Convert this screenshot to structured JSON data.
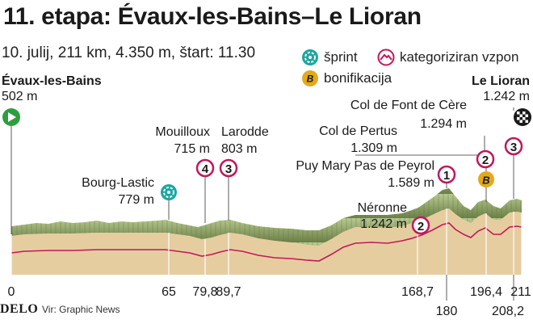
{
  "title": "11. etapa: Évaux-les-Bains–Le Lioran",
  "subtitle": "10. julij, 211 km, 4.350 m, štart: 11.30",
  "legend": {
    "sprint": "šprint",
    "climb": "kategoriziran vzpon",
    "bonus": "bonifikacija",
    "bonus_glyph": "B"
  },
  "start": {
    "name": "Évaux-les-Bains",
    "elevation": "502 m"
  },
  "finish": {
    "name": "Le Lioran",
    "elevation": "1.242 m"
  },
  "points": [
    {
      "id": "bourg-lastic",
      "name": "Bourg-Lastic",
      "elevation": "779 m",
      "km": 65,
      "marker": "sprint"
    },
    {
      "id": "mouilloux",
      "name": "Mouilloux",
      "elevation": "715 m",
      "km": 79.8,
      "marker": "climb",
      "category": "4"
    },
    {
      "id": "larodde",
      "name": "Larodde",
      "elevation": "803 m",
      "km": 89.7,
      "marker": "climb",
      "category": "3"
    },
    {
      "id": "neronne",
      "name": "Néronne",
      "elevation": "1.242 m",
      "km": 168.7,
      "marker": "climb",
      "category": "2"
    },
    {
      "id": "puy-mary",
      "name": "Puy Mary Pas de Peyrol",
      "elevation": "1.589 m",
      "km": 180,
      "marker": "climb",
      "category": "1"
    },
    {
      "id": "pertus",
      "name": "Col de Pertus",
      "elevation": "1.309 m",
      "km": 196.4,
      "marker": "climb",
      "category": "2",
      "bonus": true
    },
    {
      "id": "font-de-cere",
      "name": "Col de Font de Cère",
      "elevation": "1.294 m",
      "km": 208.2,
      "marker": "climb",
      "category": "3"
    }
  ],
  "km_labels": [
    "0",
    "65",
    "79,8",
    "89,7",
    "168,7",
    "180",
    "196,4",
    "208,2",
    "211"
  ],
  "footer": {
    "logo": "DELO",
    "source": "Vir: Graphic News"
  },
  "colors": {
    "terrain_fill": "#e6cda0",
    "ridge_light": "#b7c98f",
    "ridge_dark": "#6b7f47",
    "road_line": "#c2185b",
    "climb_badge": "#c2185b",
    "sprint_icon": "#1ba7a0",
    "bonus_badge": "#e3a91b",
    "start_flag": "#2e9e3e",
    "finish_flag": "#1a1a1a"
  }
}
